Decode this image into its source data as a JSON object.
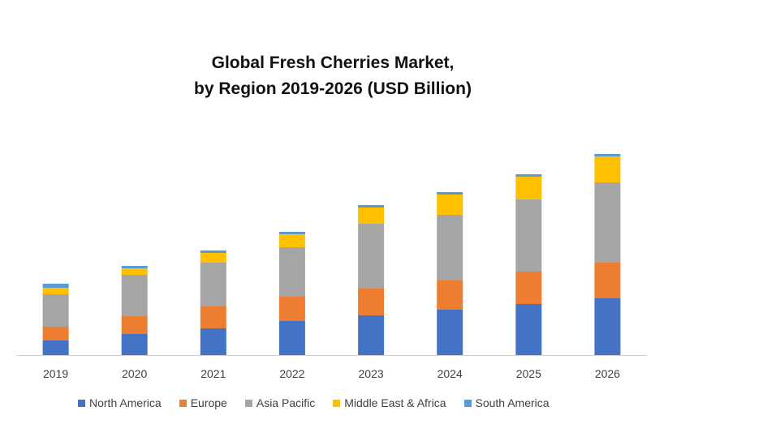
{
  "chart_data": {
    "type": "bar",
    "stacked": true,
    "title_lines": [
      "Global Fresh Cherries Market,",
      "by Region 2019-2026 (USD Billion)"
    ],
    "categories": [
      "2019",
      "2020",
      "2021",
      "2022",
      "2023",
      "2024",
      "2025",
      "2026"
    ],
    "series": [
      {
        "name": "North America",
        "color": "#4472C4",
        "values": [
          18,
          26,
          33,
          42,
          49,
          56,
          63,
          70
        ]
      },
      {
        "name": "Europe",
        "color": "#ED7D31",
        "values": [
          17,
          22,
          27,
          30,
          33,
          36,
          40,
          44
        ]
      },
      {
        "name": "Asia Pacific",
        "color": "#A5A5A5",
        "values": [
          40,
          51,
          54,
          61,
          80,
          81,
          89,
          99
        ]
      },
      {
        "name": "Middle East & Africa",
        "color": "#FFC000",
        "values": [
          8,
          8,
          12,
          16,
          20,
          25,
          28,
          32
        ]
      },
      {
        "name": "South America",
        "color": "#5B9BD5",
        "values": [
          5,
          3,
          3,
          3,
          3,
          3,
          3,
          3
        ]
      }
    ],
    "ylim": [
      0,
      260
    ],
    "grid": false,
    "legend_position": "bottom"
  }
}
